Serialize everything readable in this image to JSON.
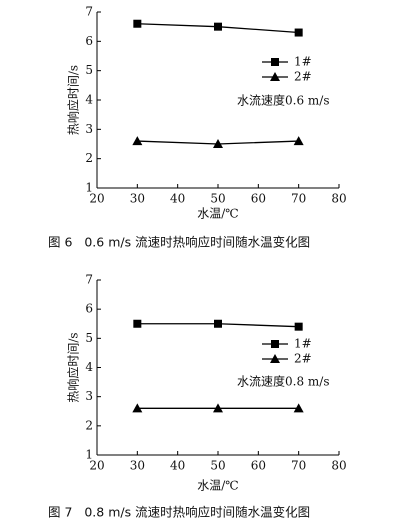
{
  "chart_data": [
    {
      "type": "line",
      "x_label": "水温/℃",
      "y_label": "热响应时间/s",
      "annotation": "水流速度0.6 m/s",
      "caption": "图 6   0.6 m/s 流速时热响应时间随水温变化图",
      "x": [
        30,
        50,
        70
      ],
      "series": [
        {
          "name": "1#",
          "color": "#000000",
          "marker": "square",
          "values": [
            6.6,
            6.5,
            6.3
          ]
        },
        {
          "name": "2#",
          "color": "#000000",
          "marker": "triangle",
          "values": [
            2.6,
            2.5,
            2.6
          ]
        }
      ],
      "xlim": [
        20,
        80
      ],
      "xticks": [
        20,
        30,
        40,
        50,
        60,
        70,
        80
      ],
      "ylim": [
        1,
        7
      ],
      "yticks": [
        1,
        2,
        3,
        4,
        5,
        6,
        7
      ],
      "grid": false
    },
    {
      "type": "line",
      "x_label": "水温/℃",
      "y_label": "热响应时间/s",
      "annotation": "水流速度0.8 m/s",
      "caption": "图 7   0.8 m/s 流速时热响应时间随水温变化图",
      "x": [
        30,
        50,
        70
      ],
      "series": [
        {
          "name": "1#",
          "color": "#000000",
          "marker": "square",
          "values": [
            5.5,
            5.5,
            5.4
          ]
        },
        {
          "name": "2#",
          "color": "#000000",
          "marker": "triangle",
          "values": [
            2.6,
            2.6,
            2.6
          ]
        }
      ],
      "xlim": [
        20,
        80
      ],
      "xticks": [
        20,
        30,
        40,
        50,
        60,
        70,
        80
      ],
      "ylim": [
        1,
        7
      ],
      "yticks": [
        1,
        2,
        3,
        4,
        5,
        6,
        7
      ],
      "grid": false
    }
  ]
}
